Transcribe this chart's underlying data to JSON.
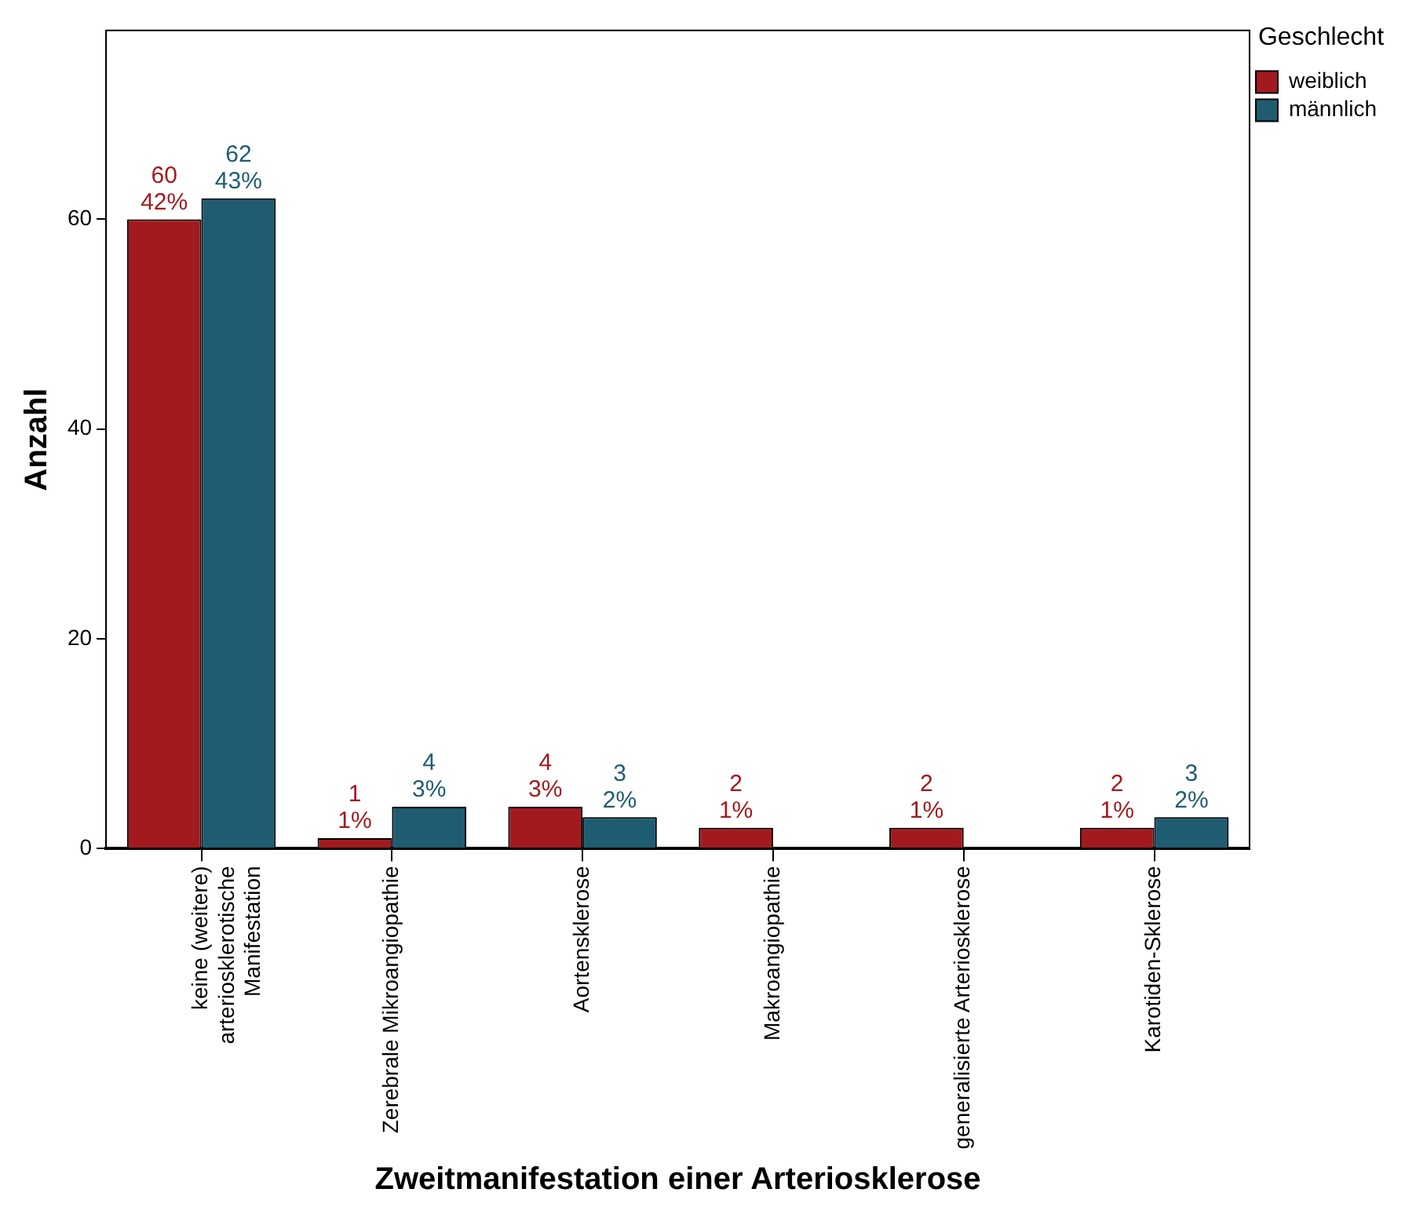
{
  "chart_data": {
    "type": "bar",
    "xlabel": "Zweitmanifestation einer Arteriosklerose",
    "ylabel": "Anzahl",
    "legend_title": "Geschlecht",
    "legend": "top right",
    "grid": false,
    "categories": [
      "keine (weitere)\narteriosklerotische\nManifestation",
      "Zerebrale Mikroangiopathie",
      "Aortensklerose",
      "Makroangiopathie",
      "generalisierte Arteriosklerose",
      "Karotiden-Sklerose"
    ],
    "series": [
      {
        "name": "weiblich",
        "color": "#a31a1e",
        "values": [
          60,
          1,
          4,
          2,
          2,
          2
        ],
        "value_labels": [
          "60\n42%",
          "1\n1%",
          "4\n3%",
          "2\n1%",
          "2\n1%",
          "2\n1%"
        ]
      },
      {
        "name": "männlich",
        "color": "#1f5c72",
        "values": [
          62,
          4,
          3,
          null,
          null,
          3
        ],
        "value_labels": [
          "62\n43%",
          "4\n3%",
          "3\n2%",
          null,
          null,
          "3\n2%"
        ]
      }
    ],
    "ylim": [
      0,
      78
    ],
    "yticks": [
      0,
      20,
      40,
      60
    ]
  }
}
